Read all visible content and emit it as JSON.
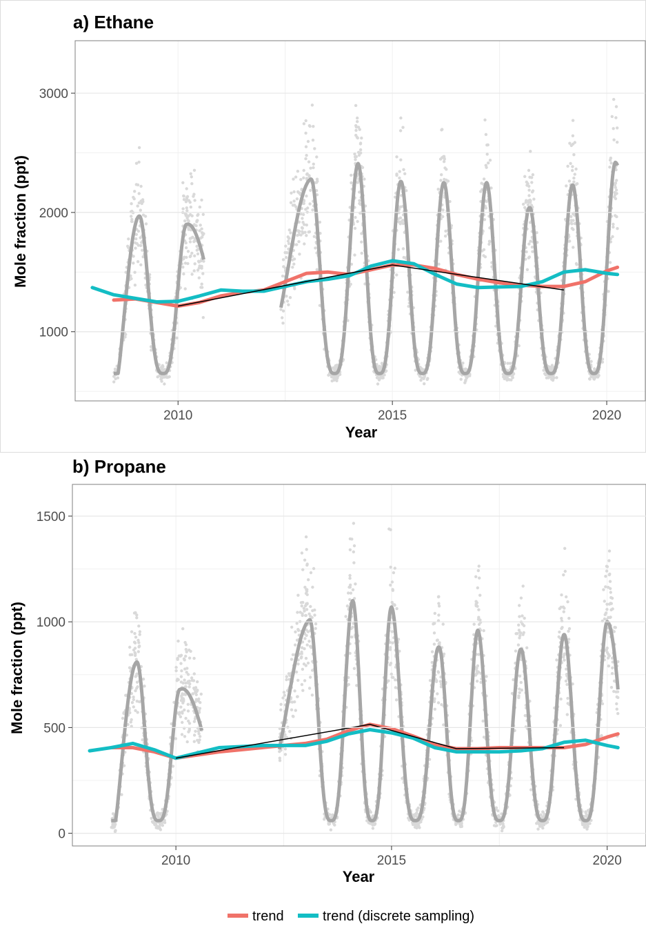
{
  "chart_data": [
    {
      "type": "line",
      "title": "a) Ethane",
      "xlabel": "Year",
      "ylabel": "Mole fraction (ppt)",
      "xlim": [
        2007.6,
        2020.9
      ],
      "ylim": [
        420,
        3440
      ],
      "xticks": [
        2010,
        2015,
        2020
      ],
      "yticks": [
        1000,
        2000,
        3000
      ],
      "grid": true,
      "seasonal_peaks": [
        {
          "x": 2009.1,
          "y": 1970
        },
        {
          "x": 2010.2,
          "y": 1900
        },
        {
          "x": 2013.1,
          "y": 2280
        },
        {
          "x": 2014.2,
          "y": 2410
        },
        {
          "x": 2015.2,
          "y": 2260
        },
        {
          "x": 2016.2,
          "y": 2250
        },
        {
          "x": 2017.2,
          "y": 2250
        },
        {
          "x": 2018.2,
          "y": 2040
        },
        {
          "x": 2019.2,
          "y": 2230
        },
        {
          "x": 2020.2,
          "y": 2420
        }
      ],
      "series": [
        {
          "name": "trend",
          "color": "#f07269",
          "x": [
            2008.5,
            2009.0,
            2009.5,
            2010.0,
            2010.5,
            2011.0,
            2011.5,
            2012.0,
            2012.5,
            2013.0,
            2013.5,
            2014.0,
            2014.5,
            2015.0,
            2015.5,
            2016.0,
            2016.5,
            2017.0,
            2017.5,
            2018.0,
            2018.5,
            2019.0,
            2019.5,
            2020.0,
            2020.25
          ],
          "y": [
            1265,
            1275,
            1245,
            1215,
            1245,
            1300,
            1330,
            1350,
            1420,
            1490,
            1500,
            1480,
            1520,
            1560,
            1560,
            1530,
            1480,
            1440,
            1410,
            1390,
            1380,
            1380,
            1420,
            1510,
            1540
          ]
        },
        {
          "name": "trend (discrete sampling)",
          "color": "#13bdc4",
          "x": [
            2008.0,
            2008.5,
            2009.0,
            2009.5,
            2010.0,
            2010.5,
            2011.0,
            2011.5,
            2012.0,
            2012.5,
            2013.0,
            2013.5,
            2014.0,
            2014.5,
            2015.0,
            2015.5,
            2016.0,
            2016.5,
            2017.0,
            2017.5,
            2018.0,
            2018.5,
            2019.0,
            2019.5,
            2020.0,
            2020.25
          ],
          "y": [
            1370,
            1310,
            1280,
            1250,
            1255,
            1300,
            1350,
            1340,
            1340,
            1380,
            1420,
            1440,
            1470,
            1550,
            1595,
            1570,
            1480,
            1400,
            1370,
            1375,
            1380,
            1420,
            1500,
            1520,
            1490,
            1480
          ]
        }
      ]
    },
    {
      "type": "line",
      "title": "b) Propane",
      "xlabel": "Year",
      "ylabel": "Mole fraction (ppt)",
      "xlim": [
        2007.6,
        2020.9
      ],
      "ylim": [
        -60,
        1650
      ],
      "xticks": [
        2010,
        2015,
        2020
      ],
      "yticks": [
        0,
        500,
        1000,
        1500
      ],
      "grid": true,
      "seasonal_peaks": [
        {
          "x": 2009.1,
          "y": 810
        },
        {
          "x": 2010.1,
          "y": 680
        },
        {
          "x": 2013.1,
          "y": 1010
        },
        {
          "x": 2014.1,
          "y": 1100
        },
        {
          "x": 2015.0,
          "y": 1070
        },
        {
          "x": 2016.1,
          "y": 880
        },
        {
          "x": 2017.0,
          "y": 960
        },
        {
          "x": 2018.0,
          "y": 870
        },
        {
          "x": 2019.0,
          "y": 940
        },
        {
          "x": 2020.0,
          "y": 1000
        }
      ],
      "series": [
        {
          "name": "trend",
          "color": "#f07269",
          "x": [
            2008.5,
            2009.0,
            2009.5,
            2010.0,
            2010.5,
            2011.0,
            2011.5,
            2012.0,
            2012.5,
            2013.0,
            2013.5,
            2014.0,
            2014.5,
            2015.0,
            2015.5,
            2016.0,
            2016.5,
            2017.0,
            2017.5,
            2018.0,
            2018.5,
            2019.0,
            2019.5,
            2020.0,
            2020.25
          ],
          "y": [
            405,
            405,
            385,
            355,
            370,
            385,
            395,
            405,
            415,
            425,
            445,
            485,
            515,
            495,
            460,
            420,
            400,
            400,
            405,
            405,
            405,
            405,
            420,
            455,
            470
          ]
        },
        {
          "name": "trend (discrete sampling)",
          "color": "#13bdc4",
          "x": [
            2008.0,
            2008.5,
            2009.0,
            2009.5,
            2010.0,
            2010.5,
            2011.0,
            2011.5,
            2012.0,
            2012.5,
            2013.0,
            2013.5,
            2014.0,
            2014.5,
            2015.0,
            2015.5,
            2016.0,
            2016.5,
            2017.0,
            2017.5,
            2018.0,
            2018.5,
            2019.0,
            2019.5,
            2020.0,
            2020.25
          ],
          "y": [
            390,
            405,
            425,
            395,
            355,
            380,
            405,
            410,
            415,
            415,
            415,
            435,
            470,
            490,
            475,
            450,
            405,
            385,
            385,
            385,
            390,
            400,
            430,
            440,
            415,
            405
          ]
        }
      ]
    }
  ],
  "legend": {
    "position": "bottom",
    "items": [
      {
        "label": "trend",
        "color": "#f07269"
      },
      {
        "label": "trend (discrete sampling)",
        "color": "#13bdc4"
      }
    ]
  }
}
